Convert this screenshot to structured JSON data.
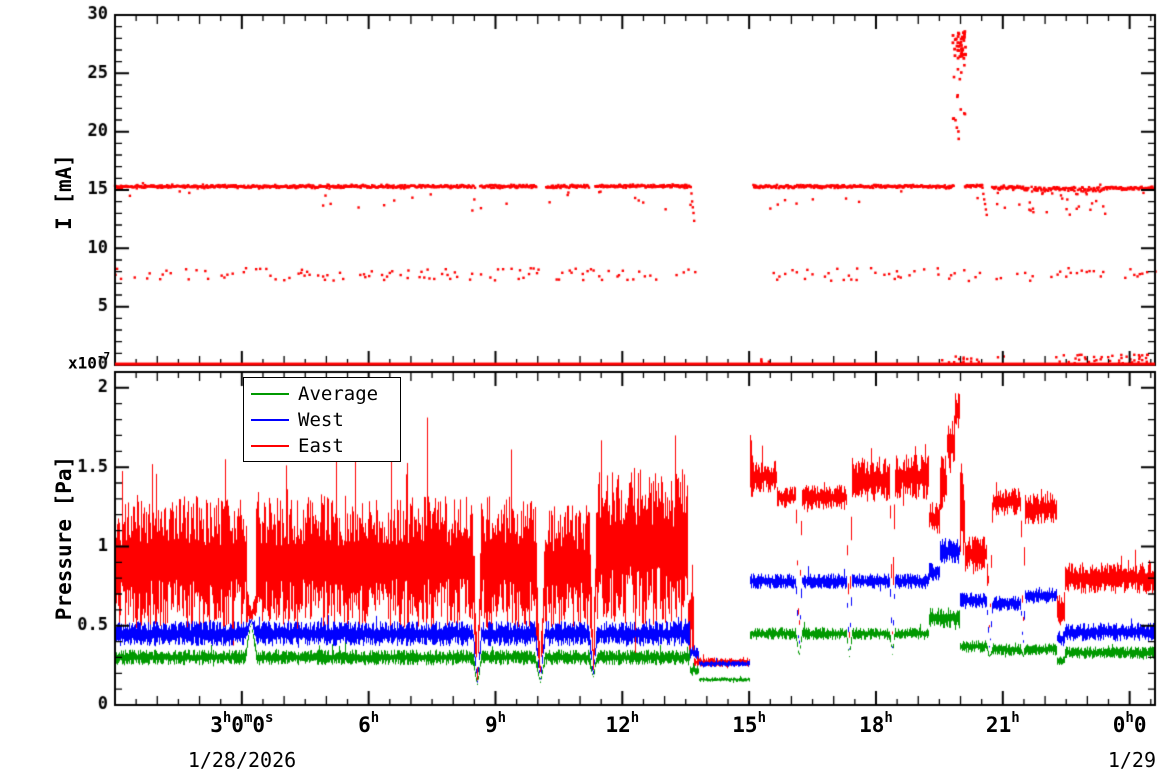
{
  "labels": {
    "top_ylabel": "I [mA]",
    "bottom_ylabel": "Pressure [Pa]",
    "scale_base": "x10",
    "scale_exp": "-7"
  },
  "x_axis": {
    "tick_hours": [
      3,
      6,
      9,
      12,
      15,
      18,
      21,
      24
    ],
    "tick_labels": [
      [
        [
          "3",
          "h"
        ],
        [
          "0",
          "m"
        ],
        [
          "0",
          "s"
        ]
      ],
      [
        [
          "6",
          "h"
        ]
      ],
      [
        [
          "9",
          "h"
        ]
      ],
      [
        [
          "12",
          "h"
        ]
      ],
      [
        [
          "15",
          "h"
        ]
      ],
      [
        [
          "18",
          "h"
        ]
      ],
      [
        [
          "21",
          "h"
        ]
      ],
      [
        [
          "0",
          "h"
        ],
        [
          "0",
          ""
        ]
      ]
    ],
    "date_left": "1/28/2026",
    "date_right": "1/29"
  },
  "legend": {
    "entries": [
      {
        "label": "Average",
        "color": "#009900"
      },
      {
        "label": "West",
        "color": "#0000ff"
      },
      {
        "label": "East",
        "color": "#ff0000"
      }
    ]
  },
  "chart_data": [
    {
      "type": "scatter",
      "title": "",
      "ylabel": "I [mA]",
      "ylim": [
        0,
        30
      ],
      "yticks": [
        0,
        5,
        10,
        15,
        20,
        25,
        30
      ],
      "xlim_hours": [
        0,
        24.6
      ],
      "xticks_hours": [
        3,
        6,
        9,
        12,
        15,
        18,
        21,
        24
      ],
      "marker_color": "#ff0000",
      "series": [
        {
          "name": "beam_current_main",
          "style": "dense_scatter",
          "segments": [
            [
              0,
              8.52,
              15.3,
              0.1,
              0.03
            ],
            [
              8.64,
              9.98,
              15.3,
              0.1,
              0.03
            ],
            [
              10.2,
              11.22,
              15.3,
              0.1,
              0.03
            ],
            [
              11.36,
              13.62,
              15.32,
              0.1,
              0.03
            ],
            [
              15.1,
              19.84,
              15.3,
              0.1,
              0.03
            ],
            [
              20.1,
              20.52,
              15.35,
              0.1,
              0.03
            ],
            [
              20.75,
              21.5,
              15.2,
              0.12,
              0.06
            ],
            [
              21.5,
              23.4,
              15.05,
              0.18,
              0.14
            ],
            [
              23.4,
              24.6,
              15.15,
              0.1,
              0.05
            ]
          ],
          "ramps": [
            [
              13.62,
              13.7,
              15.2,
              12.4
            ],
            [
              20.52,
              20.62,
              15.2,
              12.9
            ]
          ]
        },
        {
          "name": "beam_current_secondary",
          "style": "sparse_scatter",
          "band": [
            7.2,
            8.3
          ],
          "gaps": [
            [
              13.75,
              15.6
            ]
          ],
          "step": 0.06,
          "prob": 0.42
        },
        {
          "name": "spike_cluster",
          "t_range": [
            19.82,
            20.12
          ],
          "dense_v_range": [
            26.2,
            28.6
          ],
          "sparse_v_range": [
            19.0,
            26.0
          ],
          "n_dense": 42,
          "n_sparse": 16
        },
        {
          "name": "near_zero_scatter",
          "clusters": [
            {
              "t_range": [
                19.3,
                21.1
              ],
              "v_range": [
                0.15,
                0.8
              ],
              "n": 16
            },
            {
              "t_range": [
                22.2,
                24.6
              ],
              "v_range": [
                0.15,
                0.9
              ],
              "n": 42
            },
            {
              "t_range": [
                15.25,
                15.6
              ],
              "v_range": [
                0.2,
                0.5
              ],
              "n": 4
            }
          ]
        },
        {
          "name": "zero_line",
          "value": 0.08,
          "thickness": 3
        }
      ]
    },
    {
      "type": "line",
      "title": "",
      "ylabel": "Pressure [Pa]",
      "scale_label": {
        "base": "x10",
        "exponent": "-7"
      },
      "ylim": [
        0,
        2.1
      ],
      "yticks": [
        0,
        0.5,
        1,
        1.5,
        2
      ],
      "ytick_labels": [
        "0",
        "0.5",
        "1",
        "1.5",
        "2"
      ],
      "xlim_hours": [
        0,
        24.6
      ],
      "legend_position": "top-left",
      "series": [
        {
          "name": "East",
          "color": "#ff0000",
          "spike_prob": 0.05,
          "spike_scale": 1.2,
          "segments": [
            [
              0,
              3.1,
              0.9,
              0.42
            ],
            [
              3.1,
              3.32,
              0.68,
              0.2
            ],
            [
              3.32,
              8.5,
              0.9,
              0.42
            ],
            [
              8.5,
              9.97,
              0.9,
              0.42
            ],
            [
              9.97,
              11.25,
              0.87,
              0.4
            ],
            [
              11.25,
              13.55,
              1.0,
              0.5
            ],
            [
              13.55,
              13.68,
              0.55,
              0.25
            ],
            [
              13.68,
              15.0,
              0.27,
              0.03
            ],
            [
              15.0,
              15.08,
              1.5,
              0.28
            ],
            [
              15.08,
              15.65,
              1.44,
              0.1
            ],
            [
              15.65,
              16.14,
              1.31,
              0.07
            ],
            [
              16.14,
              17.33,
              1.31,
              0.08
            ],
            [
              17.33,
              18.35,
              1.42,
              0.14
            ],
            [
              18.35,
              19.25,
              1.44,
              0.14
            ],
            [
              19.25,
              19.5,
              1.18,
              0.1
            ],
            [
              19.5,
              19.68,
              1.4,
              0.18
            ],
            [
              19.68,
              19.85,
              1.65,
              0.2
            ],
            [
              19.85,
              19.98,
              1.85,
              0.13
            ],
            [
              19.98,
              20.1,
              1.2,
              0.35
            ],
            [
              20.1,
              20.64,
              0.95,
              0.12
            ],
            [
              20.64,
              21.45,
              1.28,
              0.09
            ],
            [
              21.45,
              22.28,
              1.24,
              0.1
            ],
            [
              22.28,
              22.45,
              0.6,
              0.1
            ],
            [
              22.45,
              24.61,
              0.8,
              0.1
            ]
          ]
        },
        {
          "name": "West",
          "color": "#0000ff",
          "spike_prob": 0.03,
          "spike_scale": 1.0,
          "segments": [
            [
              0,
              13.6,
              0.45,
              0.08
            ],
            [
              13.6,
              13.8,
              0.33,
              0.04
            ],
            [
              13.8,
              15.0,
              0.26,
              0.02
            ],
            [
              15.0,
              19.25,
              0.78,
              0.05
            ],
            [
              19.25,
              19.5,
              0.84,
              0.06
            ],
            [
              19.5,
              19.98,
              0.97,
              0.09
            ],
            [
              19.98,
              20.64,
              0.66,
              0.05
            ],
            [
              20.64,
              21.45,
              0.64,
              0.05
            ],
            [
              21.45,
              22.28,
              0.69,
              0.05
            ],
            [
              22.28,
              22.45,
              0.42,
              0.05
            ],
            [
              22.45,
              24.61,
              0.46,
              0.06
            ]
          ]
        },
        {
          "name": "Average",
          "color": "#009900",
          "spike_prob": 0.03,
          "spike_scale": 1.0,
          "segments": [
            [
              0,
              13.6,
              0.3,
              0.05
            ],
            [
              13.6,
              13.8,
              0.22,
              0.03
            ],
            [
              13.8,
              15.0,
              0.16,
              0.015
            ],
            [
              15.0,
              19.25,
              0.45,
              0.04
            ],
            [
              19.25,
              19.98,
              0.55,
              0.07
            ],
            [
              19.98,
              20.64,
              0.37,
              0.04
            ],
            [
              20.64,
              21.45,
              0.35,
              0.04
            ],
            [
              21.45,
              22.28,
              0.35,
              0.04
            ],
            [
              22.28,
              22.45,
              0.28,
              0.03
            ],
            [
              22.45,
              24.61,
              0.33,
              0.04
            ]
          ]
        }
      ],
      "dips": [
        {
          "t": 3.21,
          "w": 0.14,
          "low": 0.55
        },
        {
          "t": 8.56,
          "w": 0.1,
          "low": 0.1
        },
        {
          "t": 10.05,
          "w": 0.12,
          "low": 0.12
        },
        {
          "t": 11.3,
          "w": 0.09,
          "low": 0.15
        },
        {
          "t": 16.17,
          "w": 0.07,
          "low": 0.28
        },
        {
          "t": 17.36,
          "w": 0.07,
          "low": 0.28
        },
        {
          "t": 18.38,
          "w": 0.06,
          "low": 0.3
        },
        {
          "t": 20.68,
          "w": 0.07,
          "low": 0.3
        },
        {
          "t": 21.47,
          "w": 0.05,
          "low": 0.3
        }
      ]
    }
  ]
}
